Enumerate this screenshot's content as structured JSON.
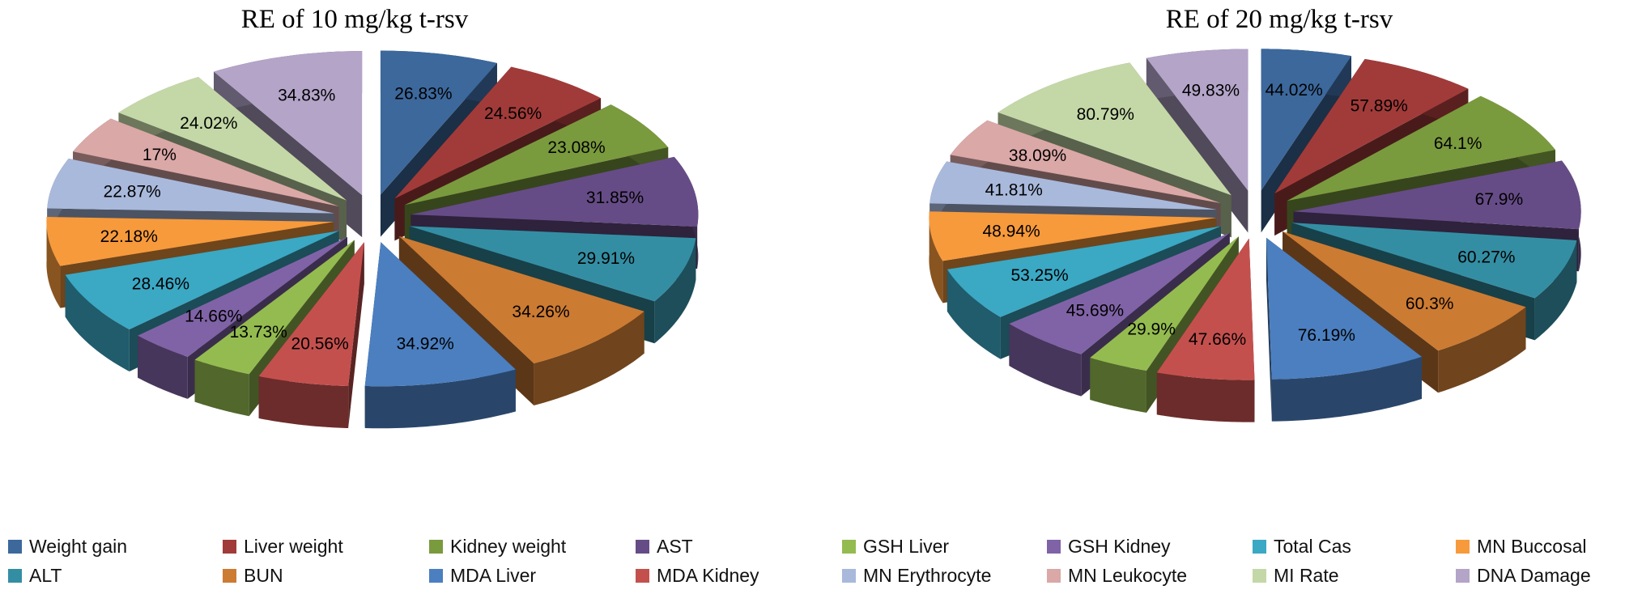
{
  "chart_data": [
    {
      "type": "pie",
      "style": "exploded-3d",
      "title": "RE of 10 mg/kg  t-rsv",
      "labels": [
        "Weight gain",
        "Liver weight",
        "Kidney weight",
        "AST",
        "ALT",
        "BUN",
        "MDA Liver",
        "MDA Kidney",
        "GSH Liver",
        "GSH Kidney",
        "Total Cas",
        "MN Buccosal",
        "MN Erythrocyte",
        "MN Leukocyte",
        "MI Rate",
        "DNA Damage"
      ],
      "values": [
        26.83,
        24.56,
        23.08,
        31.85,
        29.91,
        34.26,
        34.92,
        20.56,
        13.73,
        14.66,
        28.46,
        22.18,
        22.87,
        17,
        24.02,
        34.83
      ],
      "value_labels": [
        "26.83%",
        "24.56%",
        "23.08%",
        "31.85%",
        "29.91%",
        "34.26%",
        "34.92%",
        "20.56%",
        "13.73%",
        "14.66%",
        "28.46%",
        "22.18%",
        "22.87%",
        "17%",
        "24.02%",
        "34.83%"
      ]
    },
    {
      "type": "pie",
      "style": "exploded-3d",
      "title": "RE of 20 mg/kg  t-rsv",
      "labels": [
        "Weight gain",
        "Liver weight",
        "Kidney weight",
        "AST",
        "ALT",
        "BUN",
        "MDA Liver",
        "MDA Kidney",
        "GSH Liver",
        "GSH Kidney",
        "Total Cas",
        "MN Buccosal",
        "MN Erythrocyte",
        "MN Leukocyte",
        "MI Rate",
        "DNA Damage"
      ],
      "values": [
        44.02,
        57.89,
        64.1,
        67.9,
        60.27,
        60.3,
        76.19,
        47.66,
        29.9,
        45.69,
        53.25,
        48.94,
        41.81,
        38.09,
        80.79,
        49.83
      ],
      "value_labels": [
        "44.02%",
        "57.89%",
        "64.1%",
        "67.9%",
        "60.27%",
        "60.3%",
        "76.19%",
        "47.66%",
        "29.9%",
        "45.69%",
        "53.25%",
        "48.94%",
        "41.81%",
        "38.09%",
        "80.79%",
        "49.83%"
      ]
    }
  ],
  "legend": {
    "position": "bottom",
    "items": [
      {
        "label": "Weight gain",
        "color": "#3C689C"
      },
      {
        "label": "Liver weight",
        "color": "#A13B39"
      },
      {
        "label": "Kidney weight",
        "color": "#7A9A3E"
      },
      {
        "label": "AST",
        "color": "#664C86"
      },
      {
        "label": "GSH Liver",
        "color": "#94BB50"
      },
      {
        "label": "GSH Kidney",
        "color": "#8063A6"
      },
      {
        "label": "Total Cas",
        "color": "#3BA8C4"
      },
      {
        "label": "MN Buccosal",
        "color": "#F79A3C"
      },
      {
        "label": "ALT",
        "color": "#348EA3"
      },
      {
        "label": "BUN",
        "color": "#CC7B33"
      },
      {
        "label": "MDA Liver",
        "color": "#4B7FC0"
      },
      {
        "label": "MDA Kidney",
        "color": "#C4504E"
      },
      {
        "label": "MN Erythrocyte",
        "color": "#A9B9DC"
      },
      {
        "label": "MN Leukocyte",
        "color": "#DAA8A7"
      },
      {
        "label": "MI Rate",
        "color": "#C4D8A7"
      },
      {
        "label": "DNA Damage",
        "color": "#B3A4C8"
      }
    ]
  }
}
